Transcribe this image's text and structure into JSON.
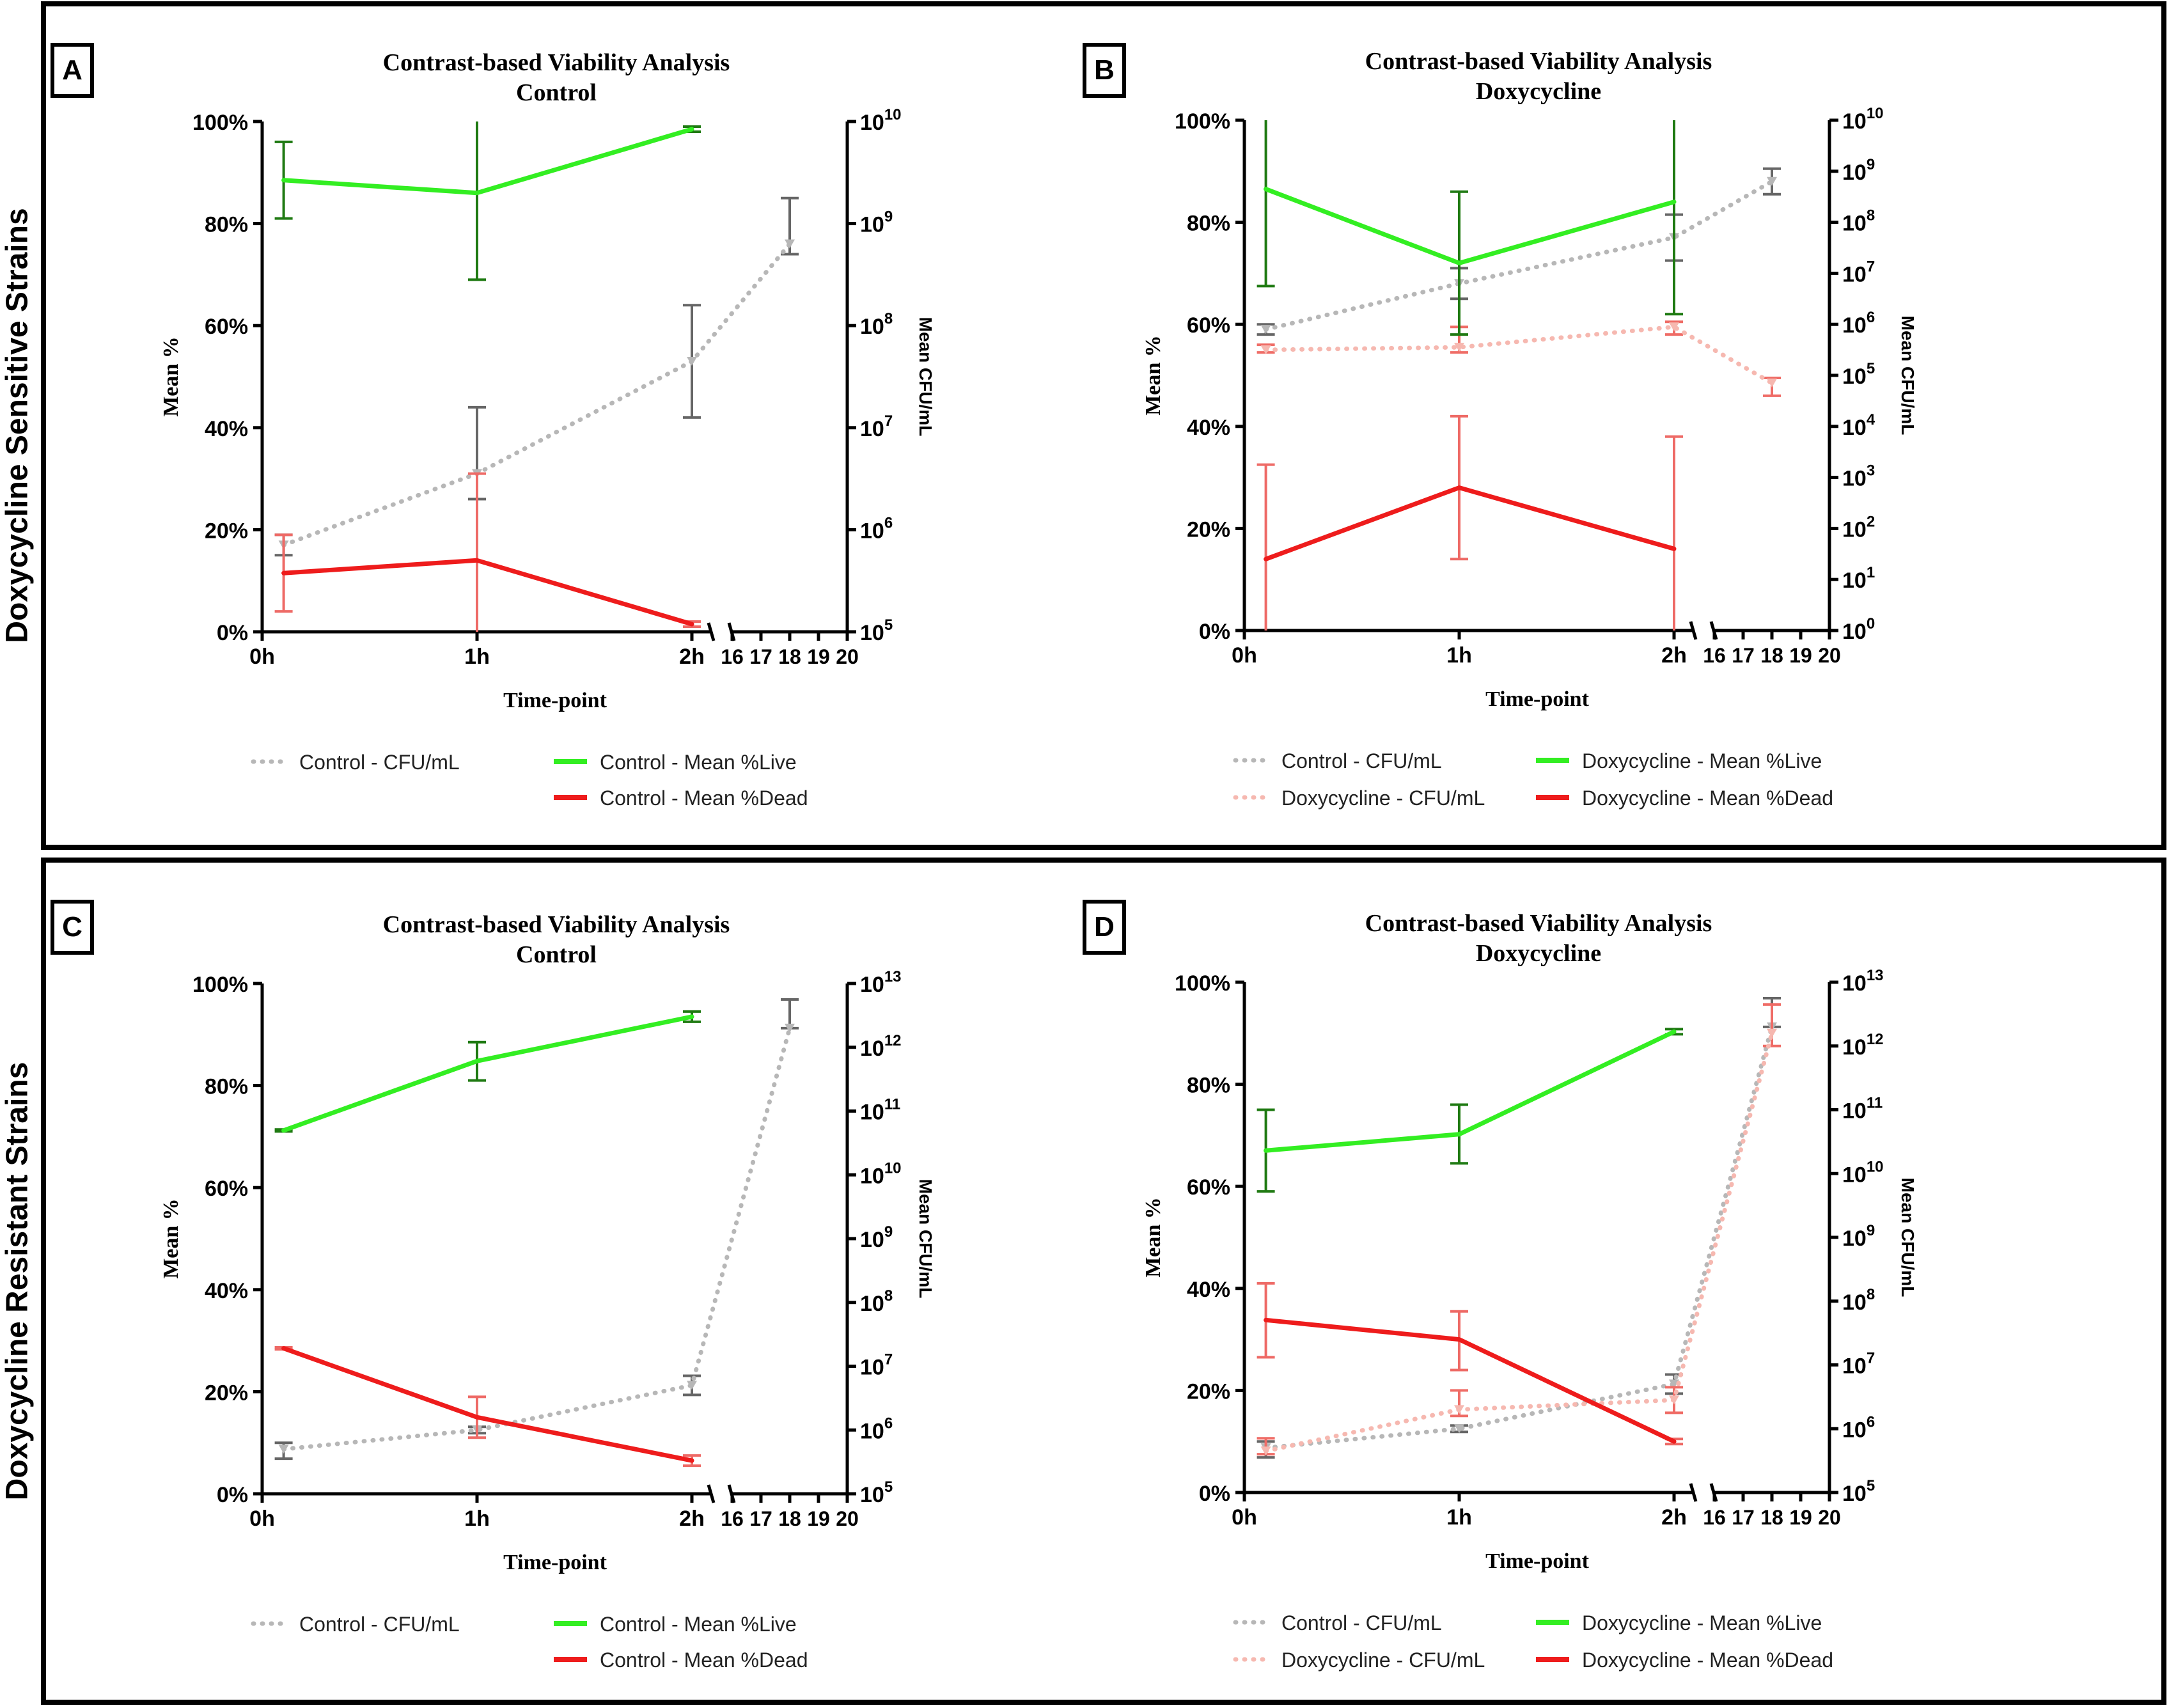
{
  "rows": [
    {
      "label": "Doxycycline Sensitive Strains"
    },
    {
      "label": "Doxycycline Resistant Strains"
    }
  ],
  "panels": [
    {
      "letter": "A",
      "line1": "Contrast-based Viability Analysis",
      "line2": "Control"
    },
    {
      "letter": "B",
      "line1": "Contrast-based Viability Analysis",
      "line2": "Doxycycline"
    },
    {
      "letter": "C",
      "line1": "Contrast-based Viability Analysis",
      "line2": "Control"
    },
    {
      "letter": "D",
      "line1": "Contrast-based Viability Analysis",
      "line2": "Doxycycline"
    }
  ],
  "colors": {
    "live": "#33ee22",
    "live_err": "#1f7a12",
    "dead": "#ee1c1c",
    "dead_err": "#ee6a66",
    "ctrl_cfu": "#b7b7b7",
    "ctrl_cfu_err": "#666666",
    "doxy_cfu": "#f6b8b0",
    "doxy_cfu_err": "#ef6c66"
  },
  "chart_data": [
    {
      "type": "line",
      "panel": "A",
      "title": "Contrast-based Viability Analysis Control",
      "xlabel": "Time-point",
      "ylabel_left": "Mean %",
      "ylabel_right": "Mean CFU/mL",
      "x_ticks_left": [
        "0h",
        "1h",
        "2h"
      ],
      "x_ticks_right": [
        "16",
        "17",
        "18",
        "19",
        "20"
      ],
      "y_left_ticks": [
        "0%",
        "20%",
        "40%",
        "60%",
        "80%",
        "100%"
      ],
      "y_left_range": [
        0,
        100
      ],
      "y_right_log_exponent_range": [
        5,
        10
      ],
      "y_right_ticks": [
        {
          "base": "10",
          "exp": "5"
        },
        {
          "base": "10",
          "exp": "6"
        },
        {
          "base": "10",
          "exp": "7"
        },
        {
          "base": "10",
          "exp": "8"
        },
        {
          "base": "10",
          "exp": "9"
        },
        {
          "base": "10",
          "exp": "10"
        }
      ],
      "series": [
        {
          "name": "Control - CFU/mL",
          "axis": "right",
          "style": "dotted",
          "color_key": "ctrl_cfu",
          "x": [
            0.1,
            1.0,
            2.0,
            18.0
          ],
          "log10_values": [
            5.85,
            6.55,
            7.65,
            8.8
          ],
          "log10_err": [
            [
              5.75,
              5.95
            ],
            [
              6.3,
              7.2
            ],
            [
              7.1,
              8.2
            ],
            [
              8.7,
              9.25
            ]
          ]
        },
        {
          "name": "Control - Mean %Live",
          "axis": "left",
          "style": "solid",
          "color_key": "live",
          "x": [
            0.1,
            1.0,
            2.0
          ],
          "values": [
            88.5,
            86,
            98.5
          ],
          "errors": [
            [
              81,
              96
            ],
            [
              69,
              100
            ],
            [
              98,
              99
            ]
          ]
        },
        {
          "name": "Control - Mean %Dead",
          "axis": "left",
          "style": "solid",
          "color_key": "dead",
          "x": [
            0.1,
            1.0,
            2.0
          ],
          "values": [
            11.5,
            14,
            1.5
          ],
          "errors": [
            [
              4,
              19
            ],
            [
              0,
              31
            ],
            [
              1,
              2
            ]
          ]
        }
      ],
      "legend": [
        {
          "label": "Control - CFU/mL",
          "style": "dotted",
          "color_key": "ctrl_cfu"
        },
        {
          "label": "Control - Mean %Live",
          "style": "solid",
          "color_key": "live"
        },
        {
          "label": "Control - Mean %Dead",
          "style": "solid",
          "color_key": "dead"
        }
      ]
    },
    {
      "type": "line",
      "panel": "B",
      "title": "Contrast-based Viability Analysis Doxycycline",
      "xlabel": "Time-point",
      "ylabel_left": "Mean %",
      "ylabel_right": "Mean CFU/mL",
      "x_ticks_left": [
        "0h",
        "1h",
        "2h"
      ],
      "x_ticks_right": [
        "16",
        "17",
        "18",
        "19",
        "20"
      ],
      "y_left_ticks": [
        "0%",
        "20%",
        "40%",
        "60%",
        "80%",
        "100%"
      ],
      "y_left_range": [
        0,
        100
      ],
      "y_right_log_exponent_range": [
        0,
        10
      ],
      "y_right_ticks": [
        {
          "base": "10",
          "exp": "0"
        },
        {
          "base": "10",
          "exp": "1"
        },
        {
          "base": "10",
          "exp": "2"
        },
        {
          "base": "10",
          "exp": "3"
        },
        {
          "base": "10",
          "exp": "4"
        },
        {
          "base": "10",
          "exp": "5"
        },
        {
          "base": "10",
          "exp": "6"
        },
        {
          "base": "10",
          "exp": "7"
        },
        {
          "base": "10",
          "exp": "8"
        },
        {
          "base": "10",
          "exp": "9"
        },
        {
          "base": "10",
          "exp": "10"
        }
      ],
      "series": [
        {
          "name": "Control - CFU/mL",
          "axis": "right",
          "style": "dotted",
          "color_key": "ctrl_cfu",
          "x": [
            0.1,
            1.0,
            2.0,
            18.0
          ],
          "log10_values": [
            5.9,
            6.8,
            7.7,
            8.8
          ],
          "log10_err": [
            [
              5.8,
              6.0
            ],
            [
              6.5,
              7.1
            ],
            [
              7.25,
              8.15
            ],
            [
              8.55,
              9.05
            ]
          ]
        },
        {
          "name": "Doxycycline - CFU/mL",
          "axis": "right",
          "style": "dotted",
          "color_key": "doxy_cfu",
          "x": [
            0.1,
            1.0,
            2.0,
            18.0
          ],
          "log10_values": [
            5.5,
            5.55,
            5.95,
            4.85
          ],
          "log10_err": [
            [
              5.45,
              5.6
            ],
            [
              5.45,
              5.95
            ],
            [
              5.8,
              6.05
            ],
            [
              4.6,
              4.95
            ]
          ]
        },
        {
          "name": "Doxycycline - Mean %Live",
          "axis": "left",
          "style": "solid",
          "color_key": "live",
          "x": [
            0.1,
            1.0,
            2.0
          ],
          "values": [
            86.5,
            72,
            84
          ],
          "errors": [
            [
              67.5,
              100
            ],
            [
              58,
              86
            ],
            [
              62,
              100
            ]
          ]
        },
        {
          "name": "Doxycycline - Mean %Dead",
          "axis": "left",
          "style": "solid",
          "color_key": "dead",
          "x": [
            0.1,
            1.0,
            2.0
          ],
          "values": [
            14,
            28,
            16
          ],
          "errors": [
            [
              0,
              32.5
            ],
            [
              14,
              42
            ],
            [
              0,
              38
            ]
          ]
        }
      ],
      "legend": [
        {
          "label": "Control - CFU/mL",
          "style": "dotted",
          "color_key": "ctrl_cfu"
        },
        {
          "label": "Doxycycline - Mean %Live",
          "style": "solid",
          "color_key": "live"
        },
        {
          "label": "Doxycycline - CFU/mL",
          "style": "dotted",
          "color_key": "doxy_cfu"
        },
        {
          "label": "Doxycycline - Mean %Dead",
          "style": "solid",
          "color_key": "dead"
        }
      ]
    },
    {
      "type": "line",
      "panel": "C",
      "title": "Contrast-based Viability Analysis Control",
      "xlabel": "Time-point",
      "ylabel_left": "Mean %",
      "ylabel_right": "Mean CFU/mL",
      "x_ticks_left": [
        "0h",
        "1h",
        "2h"
      ],
      "x_ticks_right": [
        "16",
        "17",
        "18",
        "19",
        "20"
      ],
      "y_left_ticks": [
        "0%",
        "20%",
        "40%",
        "60%",
        "80%",
        "100%"
      ],
      "y_left_range": [
        0,
        100
      ],
      "y_right_log_exponent_range": [
        5,
        13
      ],
      "y_right_ticks": [
        {
          "base": "10",
          "exp": "5"
        },
        {
          "base": "10",
          "exp": "6"
        },
        {
          "base": "10",
          "exp": "7"
        },
        {
          "base": "10",
          "exp": "8"
        },
        {
          "base": "10",
          "exp": "9"
        },
        {
          "base": "10",
          "exp": "10"
        },
        {
          "base": "10",
          "exp": "11"
        },
        {
          "base": "10",
          "exp": "12"
        },
        {
          "base": "10",
          "exp": "13"
        }
      ],
      "series": [
        {
          "name": "Control - CFU/mL",
          "axis": "right",
          "style": "dotted",
          "color_key": "ctrl_cfu",
          "x": [
            0.1,
            1.0,
            2.0,
            18.0
          ],
          "log10_values": [
            5.7,
            6.0,
            6.7,
            12.3
          ],
          "log10_err": [
            [
              5.55,
              5.8
            ],
            [
              5.95,
              6.05
            ],
            [
              6.55,
              6.85
            ],
            [
              12.3,
              12.75
            ]
          ]
        },
        {
          "name": "Control - Mean %Live",
          "axis": "left",
          "style": "solid",
          "color_key": "live",
          "x": [
            0.1,
            1.0,
            2.0
          ],
          "values": [
            71.2,
            84.8,
            93.5
          ],
          "errors": [
            [
              71,
              71.4
            ],
            [
              81,
              88.5
            ],
            [
              92.5,
              94.5
            ]
          ]
        },
        {
          "name": "Control - Mean %Dead",
          "axis": "left",
          "style": "solid",
          "color_key": "dead",
          "x": [
            0.1,
            1.0,
            2.0
          ],
          "values": [
            28.5,
            15,
            6.5
          ],
          "errors": [
            [
              28.3,
              28.7
            ],
            [
              11,
              19
            ],
            [
              5.5,
              7.5
            ]
          ]
        }
      ],
      "legend": [
        {
          "label": "Control - CFU/mL",
          "style": "dotted",
          "color_key": "ctrl_cfu"
        },
        {
          "label": "Control - Mean %Live",
          "style": "solid",
          "color_key": "live"
        },
        {
          "label": "Control - Mean %Dead",
          "style": "solid",
          "color_key": "dead"
        }
      ]
    },
    {
      "type": "line",
      "panel": "D",
      "title": "Contrast-based Viability Analysis Doxycycline",
      "xlabel": "Time-point",
      "ylabel_left": "Mean %",
      "ylabel_right": "Mean CFU/mL",
      "x_ticks_left": [
        "0h",
        "1h",
        "2h"
      ],
      "x_ticks_right": [
        "16",
        "17",
        "18",
        "19",
        "20"
      ],
      "y_left_ticks": [
        "0%",
        "20%",
        "40%",
        "60%",
        "80%",
        "100%"
      ],
      "y_left_range": [
        0,
        100
      ],
      "y_right_log_exponent_range": [
        5,
        13
      ],
      "y_right_ticks": [
        {
          "base": "10",
          "exp": "5"
        },
        {
          "base": "10",
          "exp": "6"
        },
        {
          "base": "10",
          "exp": "7"
        },
        {
          "base": "10",
          "exp": "8"
        },
        {
          "base": "10",
          "exp": "9"
        },
        {
          "base": "10",
          "exp": "10"
        },
        {
          "base": "10",
          "exp": "11"
        },
        {
          "base": "10",
          "exp": "12"
        },
        {
          "base": "10",
          "exp": "13"
        }
      ],
      "series": [
        {
          "name": "Control - CFU/mL",
          "axis": "right",
          "style": "dotted",
          "color_key": "ctrl_cfu",
          "x": [
            0.1,
            1.0,
            2.0,
            18.0
          ],
          "log10_values": [
            5.7,
            6.0,
            6.7,
            12.3
          ],
          "log10_err": [
            [
              5.55,
              5.8
            ],
            [
              5.95,
              6.05
            ],
            [
              6.55,
              6.85
            ],
            [
              12.3,
              12.75
            ]
          ]
        },
        {
          "name": "Doxycycline - CFU/mL",
          "axis": "right",
          "style": "dotted",
          "color_key": "doxy_cfu",
          "x": [
            0.1,
            1.0,
            2.0,
            18.0
          ],
          "log10_values": [
            5.65,
            6.3,
            6.45,
            12.2
          ],
          "log10_err": [
            [
              5.6,
              5.85
            ],
            [
              6.2,
              6.6
            ],
            [
              6.25,
              6.65
            ],
            [
              12.0,
              12.65
            ]
          ]
        },
        {
          "name": "Doxycycline - Mean %Live",
          "axis": "left",
          "style": "solid",
          "color_key": "live",
          "x": [
            0.1,
            1.0,
            2.0
          ],
          "values": [
            67,
            70.2,
            90.3
          ],
          "errors": [
            [
              59,
              75
            ],
            [
              64.5,
              76
            ],
            [
              89.8,
              90.8
            ]
          ]
        },
        {
          "name": "Doxycycline - Mean %Dead",
          "axis": "left",
          "style": "solid",
          "color_key": "dead",
          "x": [
            0.1,
            1.0,
            2.0
          ],
          "values": [
            33.8,
            30,
            10
          ],
          "errors": [
            [
              26.5,
              41
            ],
            [
              24,
              35.5
            ],
            [
              9.5,
              10.5
            ]
          ]
        }
      ],
      "legend": [
        {
          "label": "Control - CFU/mL",
          "style": "dotted",
          "color_key": "ctrl_cfu"
        },
        {
          "label": "Doxycycline - Mean %Live",
          "style": "solid",
          "color_key": "live"
        },
        {
          "label": "Doxycycline - CFU/mL",
          "style": "dotted",
          "color_key": "doxy_cfu"
        },
        {
          "label": "Doxycycline - Mean %Dead",
          "style": "solid",
          "color_key": "dead"
        }
      ]
    }
  ]
}
